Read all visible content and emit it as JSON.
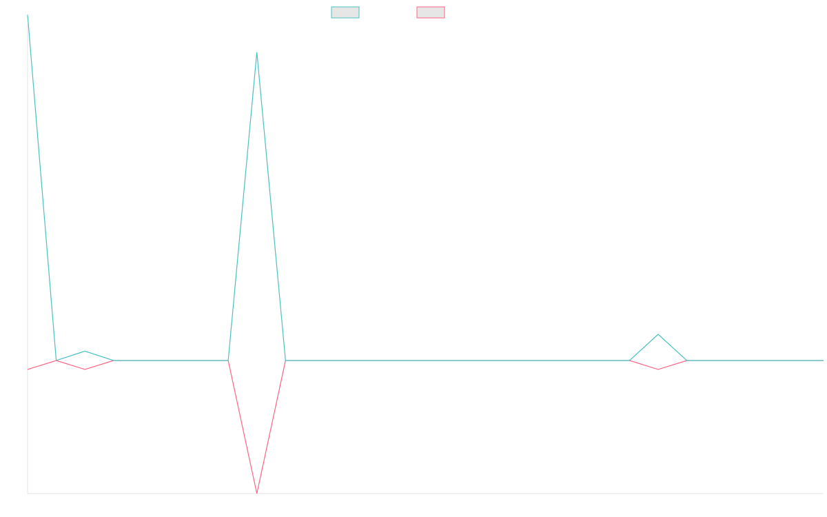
{
  "chart_data": {
    "type": "line",
    "title": "",
    "xlabel": "",
    "ylabel": "",
    "grid": false,
    "legend_position": "top-center",
    "x_count": 28,
    "ylim": [
      -150,
      360
    ],
    "series": [
      {
        "name": "",
        "color": "#4bc0c0",
        "values": [
          370,
          0,
          10,
          0,
          0,
          0,
          0,
          0,
          330,
          0,
          0,
          0,
          0,
          0,
          0,
          0,
          0,
          0,
          0,
          0,
          0,
          0,
          28,
          0,
          0,
          0,
          0,
          0
        ]
      },
      {
        "name": "",
        "color": "#ff6384",
        "values": [
          -10,
          0,
          -10,
          0,
          0,
          0,
          0,
          0,
          -150,
          0,
          0,
          0,
          0,
          0,
          0,
          0,
          0,
          0,
          0,
          0,
          0,
          0,
          -10,
          0,
          0,
          0,
          0,
          0
        ]
      }
    ]
  }
}
